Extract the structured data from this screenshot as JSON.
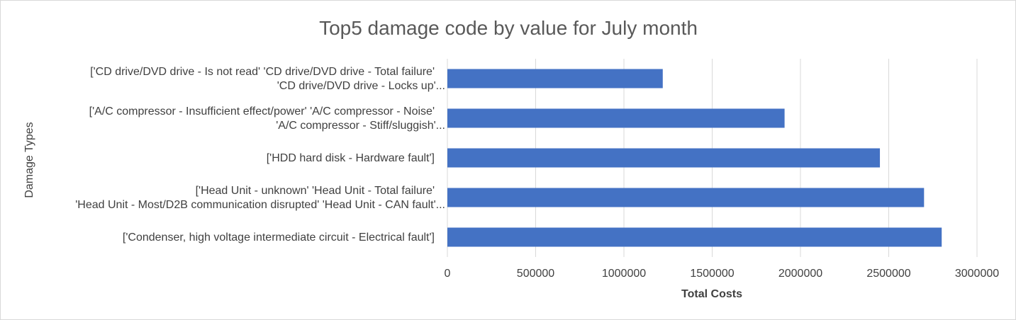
{
  "chart_data": {
    "type": "bar",
    "orientation": "horizontal",
    "title": "Top5 damage code by value for July month",
    "xlabel": "Total Costs",
    "ylabel": "Damage Types",
    "xlim": [
      0,
      3000000
    ],
    "xticks": [
      0,
      500000,
      1000000,
      1500000,
      2000000,
      2500000,
      3000000
    ],
    "grid": true,
    "bar_color": "#4472c4",
    "categories": [
      [
        "['CD drive/DVD drive - Is not read' 'CD drive/DVD drive - Total failure'",
        "'CD drive/DVD drive - Locks up'..."
      ],
      [
        "['A/C compressor - Insufficient effect/power' 'A/C compressor - Noise'",
        "'A/C compressor - Stiff/sluggish'..."
      ],
      [
        "['HDD hard disk - Hardware fault']"
      ],
      [
        "['Head Unit - unknown' 'Head Unit - Total failure'",
        "'Head Unit - Most/D2B communication disrupted' 'Head Unit - CAN fault'..."
      ],
      [
        "['Condenser, high voltage intermediate circuit - Electrical fault']"
      ]
    ],
    "values": [
      1220000,
      1910000,
      2450000,
      2700000,
      2800000
    ]
  }
}
